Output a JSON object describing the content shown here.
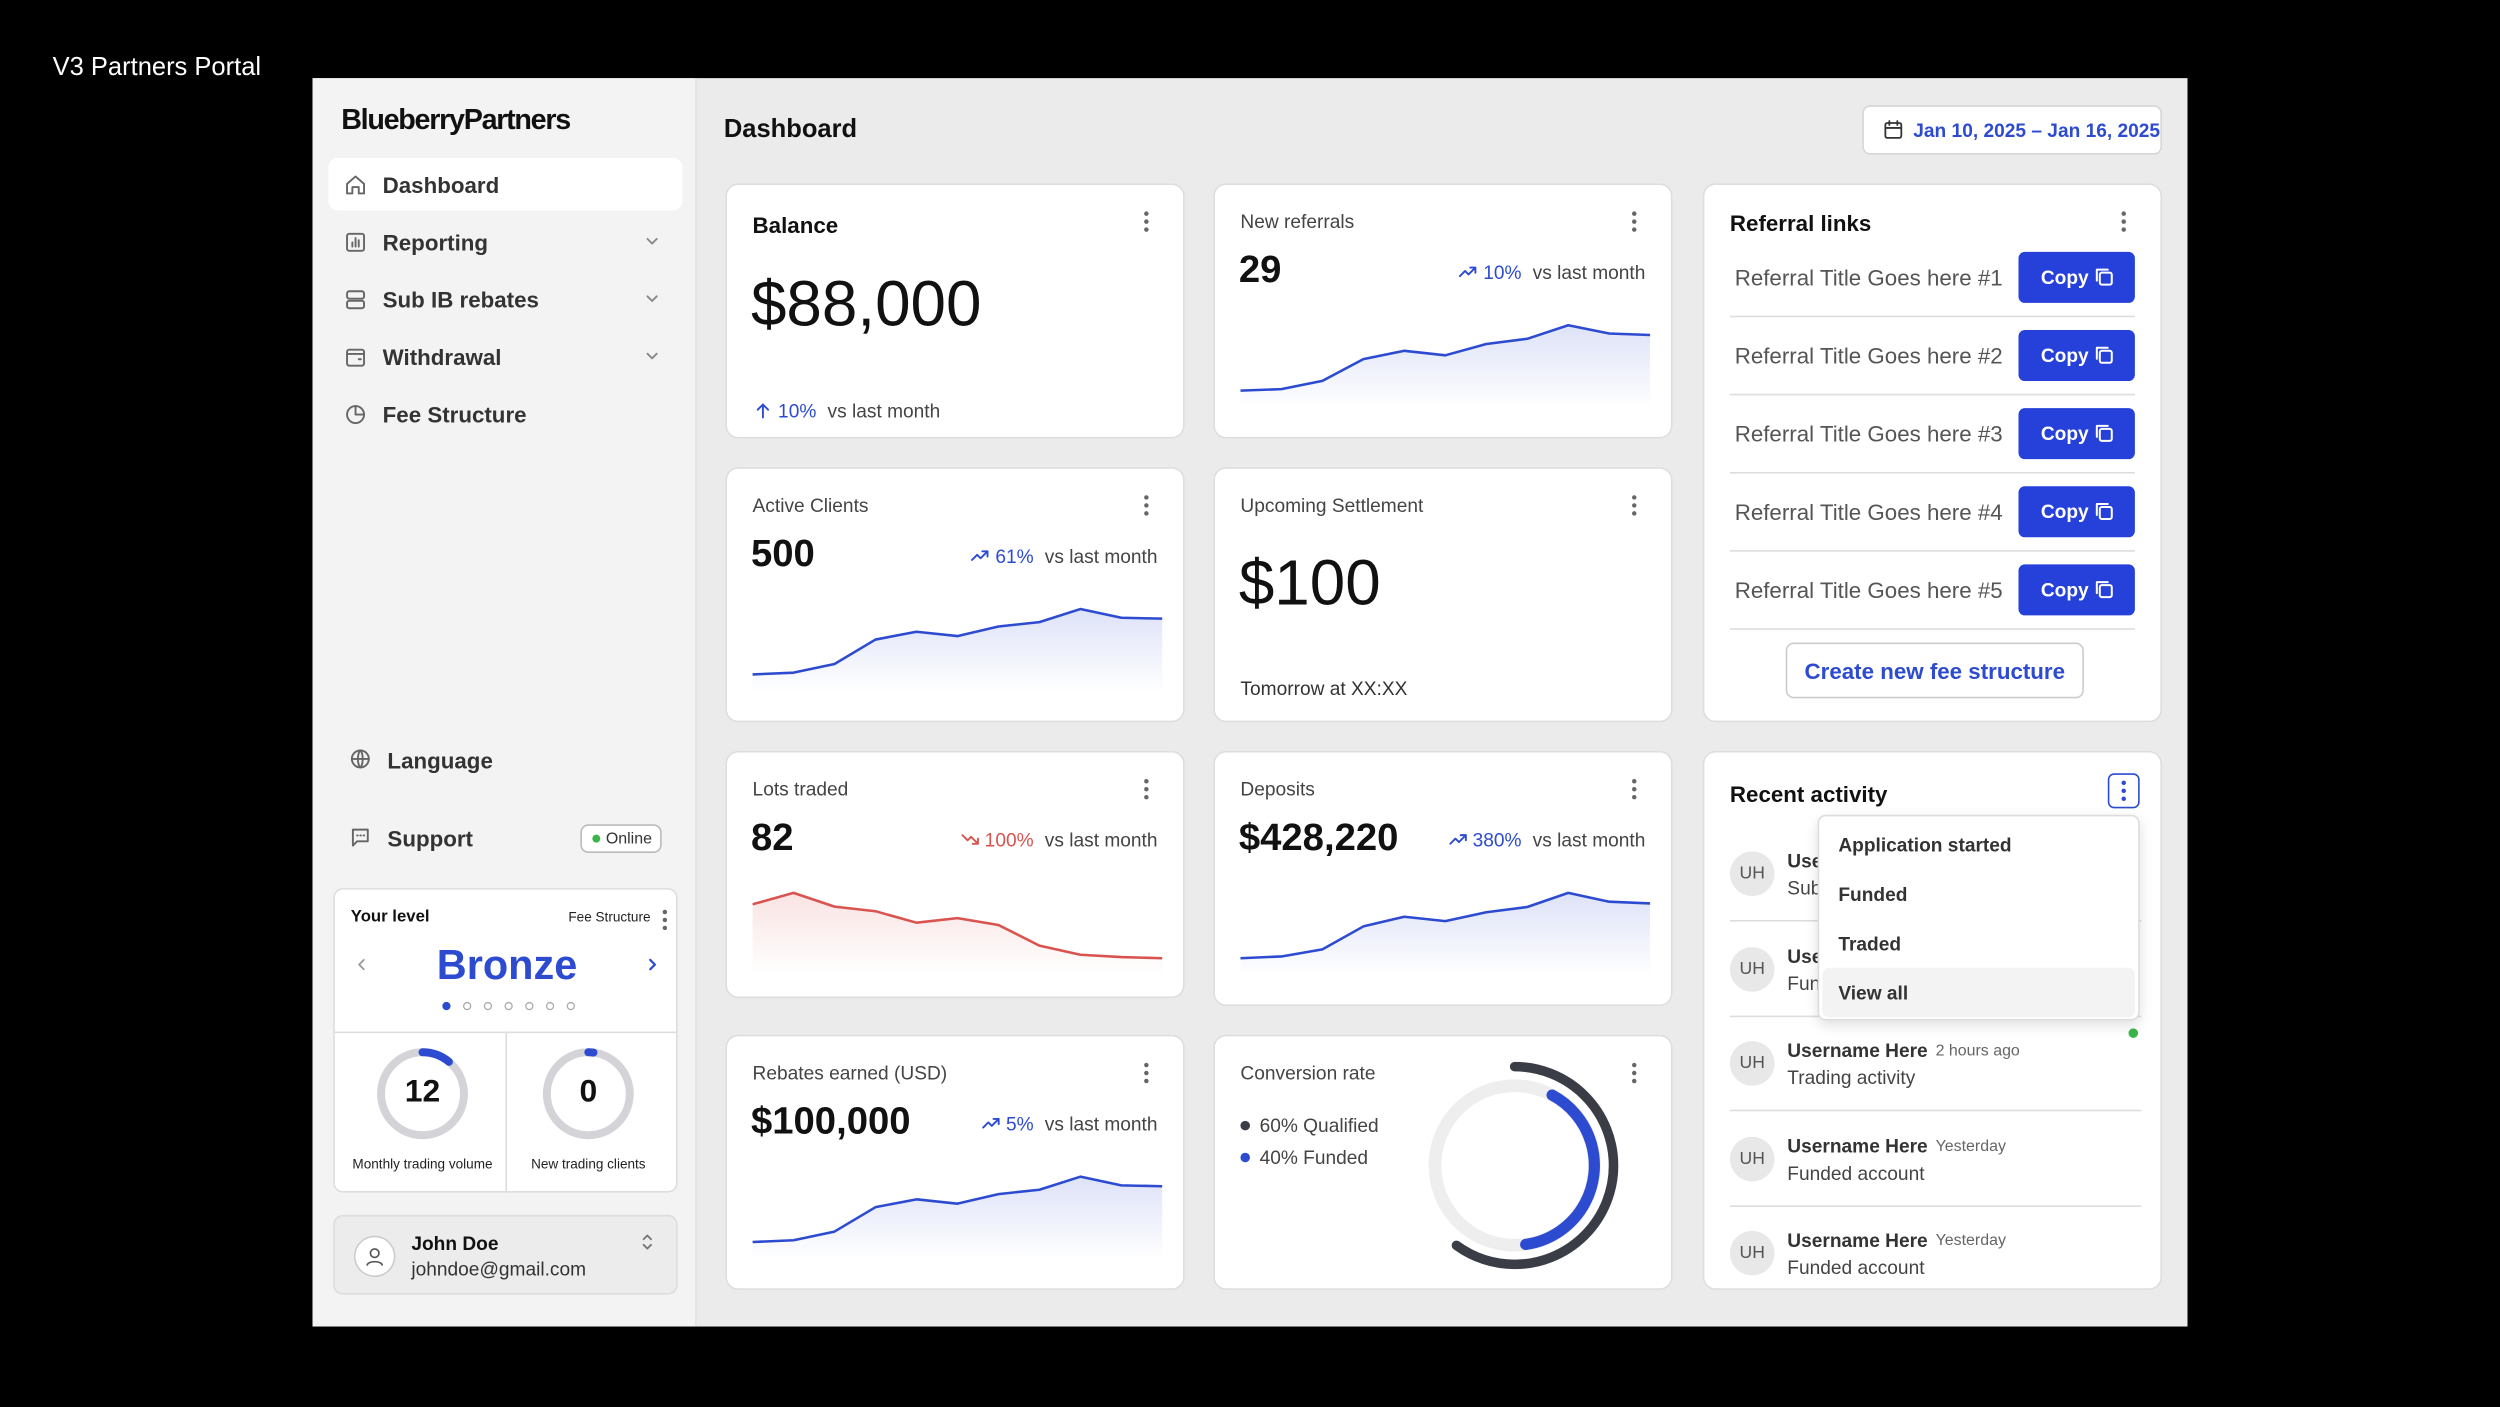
{
  "window_title": "V3 Partners Portal",
  "sidebar": {
    "brand": "BlueberryPartners",
    "nav": [
      {
        "label": "Dashboard",
        "active": true,
        "expandable": false
      },
      {
        "label": "Reporting",
        "active": false,
        "expandable": true
      },
      {
        "label": "Sub IB rebates",
        "active": false,
        "expandable": true
      },
      {
        "label": "Withdrawal",
        "active": false,
        "expandable": true
      },
      {
        "label": "Fee Structure",
        "active": false,
        "expandable": false
      }
    ],
    "language": "Language",
    "support": "Support",
    "status": "Online",
    "level": {
      "title": "Your level",
      "link": "Fee Structure",
      "tier": "Bronze",
      "stats": [
        {
          "value": "12",
          "label": "Monthly trading volume"
        },
        {
          "value": "0",
          "label": "New trading clients"
        }
      ]
    },
    "user": {
      "name": "John Doe",
      "email": "johndoe@gmail.com"
    }
  },
  "header": {
    "title": "Dashboard",
    "date_range": "Jan 10, 2025 – Jan 16, 2025"
  },
  "cards": [
    {
      "kind": "big",
      "title": "Balance",
      "value": "$88,000",
      "change": "10%",
      "change_note": "vs last month",
      "direction": "up"
    },
    {
      "kind": "spark",
      "title": "New referrals",
      "value": "29",
      "change": "10%",
      "change_note": "vs last month",
      "direction": "up",
      "trend": [
        8,
        10,
        21,
        50,
        61,
        55,
        70,
        77,
        95,
        84,
        82
      ]
    },
    {
      "kind": "spark",
      "title": "Active Clients",
      "value": "500",
      "change": "61%",
      "change_note": "vs last month",
      "direction": "up",
      "trend": [
        8,
        10,
        20,
        48,
        57,
        52,
        63,
        68,
        83,
        73,
        72
      ]
    },
    {
      "kind": "note",
      "title": "Upcoming Settlement",
      "value": "$100",
      "note": "Tomorrow at XX:XX"
    },
    {
      "kind": "spark",
      "title": "Lots traded",
      "value": "82",
      "change": "100%",
      "change_note": "vs last month",
      "direction": "down",
      "trend": [
        68,
        78,
        66,
        62,
        52,
        56,
        50,
        32,
        24,
        22,
        21
      ]
    },
    {
      "kind": "spark",
      "title": "Deposits",
      "value": "$428,220",
      "change": "380%",
      "change_note": "vs last month",
      "direction": "up",
      "trend": [
        8,
        10,
        18,
        44,
        55,
        50,
        60,
        66,
        82,
        72,
        70
      ]
    },
    {
      "kind": "spark",
      "title": "Rebates earned (USD)",
      "value": "$100,000",
      "change": "5%",
      "change_note": "vs last month",
      "direction": "up",
      "trend": [
        8,
        10,
        20,
        48,
        57,
        52,
        63,
        68,
        83,
        73,
        72
      ]
    },
    {
      "kind": "donut",
      "title": "Conversion rate",
      "segments": [
        {
          "label": "60% Qualified",
          "value": 60,
          "color": "#3a3d45"
        },
        {
          "label": "40% Funded",
          "value": 40,
          "color": "#2d4bd0"
        }
      ]
    }
  ],
  "referrals": {
    "title": "Referral links",
    "links": [
      {
        "title": "Referral Title Goes here #1",
        "button": "Copy"
      },
      {
        "title": "Referral Title Goes here #2",
        "button": "Copy"
      },
      {
        "title": "Referral Title Goes here #3",
        "button": "Copy"
      },
      {
        "title": "Referral Title Goes here #4",
        "button": "Copy"
      },
      {
        "title": "Referral Title Goes here #5",
        "button": "Copy"
      }
    ],
    "create_button": "Create new fee structure"
  },
  "activity": {
    "title": "Recent activity",
    "menu": [
      "Application started",
      "Funded",
      "Traded",
      "View all"
    ],
    "items": [
      {
        "initials": "UH",
        "name": "Username Here",
        "detail": "Sub"
      },
      {
        "initials": "UH",
        "name": "Username Here",
        "detail": "Fun"
      },
      {
        "initials": "UH",
        "name": "Username Here",
        "time": "2 hours ago",
        "detail": "Trading activity",
        "online": true
      },
      {
        "initials": "UH",
        "name": "Username Here",
        "time": "Yesterday",
        "detail": "Funded account"
      },
      {
        "initials": "UH",
        "name": "Username Here",
        "time": "Yesterday",
        "detail": "Funded account"
      }
    ]
  }
}
